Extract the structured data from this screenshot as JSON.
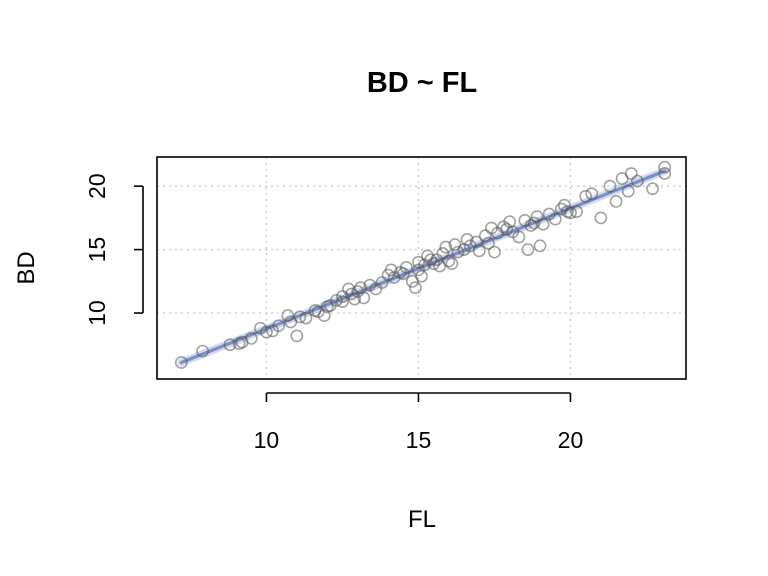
{
  "chart_data": {
    "type": "scatter",
    "title": "BD ~ FL",
    "xlabel": "FL",
    "ylabel": "BD",
    "xlim": [
      6.4,
      23.8
    ],
    "ylim": [
      4.8,
      22.3
    ],
    "x_ticks": [
      10,
      15,
      20
    ],
    "y_ticks": [
      10,
      15,
      20
    ],
    "grid": true,
    "point_color": "#555555",
    "trend_color": "#7b8fc6",
    "trend_band_color": "#c9d2ea",
    "trend_line": {
      "x": [
        7.2,
        23.1
      ],
      "y": [
        6.1,
        21.2
      ]
    },
    "points": [
      {
        "x": 7.2,
        "y": 6.1
      },
      {
        "x": 7.9,
        "y": 7.0
      },
      {
        "x": 8.8,
        "y": 7.5
      },
      {
        "x": 9.1,
        "y": 7.6
      },
      {
        "x": 9.2,
        "y": 7.7
      },
      {
        "x": 9.5,
        "y": 8.0
      },
      {
        "x": 9.8,
        "y": 8.8
      },
      {
        "x": 10.2,
        "y": 8.6
      },
      {
        "x": 10.4,
        "y": 9.0
      },
      {
        "x": 10.7,
        "y": 9.8
      },
      {
        "x": 10.8,
        "y": 9.3
      },
      {
        "x": 11.0,
        "y": 8.2
      },
      {
        "x": 11.1,
        "y": 9.7
      },
      {
        "x": 11.3,
        "y": 9.6
      },
      {
        "x": 11.6,
        "y": 10.2
      },
      {
        "x": 11.7,
        "y": 10.1
      },
      {
        "x": 11.9,
        "y": 9.8
      },
      {
        "x": 12.1,
        "y": 10.6
      },
      {
        "x": 12.3,
        "y": 11.0
      },
      {
        "x": 12.5,
        "y": 11.3
      },
      {
        "x": 12.5,
        "y": 10.9
      },
      {
        "x": 12.7,
        "y": 11.9
      },
      {
        "x": 12.8,
        "y": 11.5
      },
      {
        "x": 12.9,
        "y": 11.1
      },
      {
        "x": 13.1,
        "y": 12.0
      },
      {
        "x": 13.2,
        "y": 11.2
      },
      {
        "x": 13.4,
        "y": 12.2
      },
      {
        "x": 13.6,
        "y": 11.9
      },
      {
        "x": 13.8,
        "y": 12.4
      },
      {
        "x": 14.0,
        "y": 13.0
      },
      {
        "x": 14.1,
        "y": 13.4
      },
      {
        "x": 14.2,
        "y": 12.8
      },
      {
        "x": 14.4,
        "y": 13.2
      },
      {
        "x": 14.6,
        "y": 13.6
      },
      {
        "x": 14.8,
        "y": 12.5
      },
      {
        "x": 14.9,
        "y": 12.0
      },
      {
        "x": 15.0,
        "y": 14.0
      },
      {
        "x": 15.0,
        "y": 13.4
      },
      {
        "x": 15.1,
        "y": 12.9
      },
      {
        "x": 15.2,
        "y": 13.8
      },
      {
        "x": 15.3,
        "y": 14.5
      },
      {
        "x": 15.5,
        "y": 13.9
      },
      {
        "x": 15.6,
        "y": 14.2
      },
      {
        "x": 15.7,
        "y": 13.7
      },
      {
        "x": 15.8,
        "y": 14.7
      },
      {
        "x": 15.9,
        "y": 15.2
      },
      {
        "x": 16.0,
        "y": 14.1
      },
      {
        "x": 16.1,
        "y": 13.9
      },
      {
        "x": 16.2,
        "y": 15.4
      },
      {
        "x": 16.3,
        "y": 14.8
      },
      {
        "x": 16.5,
        "y": 15.0
      },
      {
        "x": 16.7,
        "y": 15.3
      },
      {
        "x": 16.9,
        "y": 15.6
      },
      {
        "x": 17.0,
        "y": 14.9
      },
      {
        "x": 17.2,
        "y": 16.1
      },
      {
        "x": 17.3,
        "y": 15.5
      },
      {
        "x": 17.4,
        "y": 16.7
      },
      {
        "x": 17.5,
        "y": 14.8
      },
      {
        "x": 17.6,
        "y": 16.3
      },
      {
        "x": 17.8,
        "y": 16.8
      },
      {
        "x": 18.0,
        "y": 17.2
      },
      {
        "x": 18.1,
        "y": 16.4
      },
      {
        "x": 18.3,
        "y": 16.0
      },
      {
        "x": 18.5,
        "y": 17.3
      },
      {
        "x": 18.6,
        "y": 15.0
      },
      {
        "x": 18.7,
        "y": 16.9
      },
      {
        "x": 18.9,
        "y": 17.6
      },
      {
        "x": 19.0,
        "y": 15.3
      },
      {
        "x": 19.1,
        "y": 17.0
      },
      {
        "x": 19.3,
        "y": 17.8
      },
      {
        "x": 19.5,
        "y": 17.4
      },
      {
        "x": 19.7,
        "y": 18.2
      },
      {
        "x": 19.8,
        "y": 18.5
      },
      {
        "x": 20.0,
        "y": 17.9
      },
      {
        "x": 20.2,
        "y": 18.0
      },
      {
        "x": 20.5,
        "y": 19.2
      },
      {
        "x": 20.7,
        "y": 19.4
      },
      {
        "x": 21.0,
        "y": 17.5
      },
      {
        "x": 21.3,
        "y": 20.0
      },
      {
        "x": 21.5,
        "y": 18.8
      },
      {
        "x": 21.7,
        "y": 20.6
      },
      {
        "x": 21.9,
        "y": 19.6
      },
      {
        "x": 22.0,
        "y": 21.0
      },
      {
        "x": 22.2,
        "y": 20.4
      },
      {
        "x": 22.7,
        "y": 19.8
      },
      {
        "x": 23.1,
        "y": 21.5
      },
      {
        "x": 23.1,
        "y": 21.0
      },
      {
        "x": 16.6,
        "y": 15.8
      },
      {
        "x": 15.4,
        "y": 14.2
      },
      {
        "x": 13.0,
        "y": 11.7
      },
      {
        "x": 14.5,
        "y": 13.1
      },
      {
        "x": 12.0,
        "y": 10.5
      },
      {
        "x": 17.9,
        "y": 16.6
      },
      {
        "x": 18.8,
        "y": 17.1
      },
      {
        "x": 19.9,
        "y": 18.0
      },
      {
        "x": 10.0,
        "y": 8.5
      }
    ]
  }
}
